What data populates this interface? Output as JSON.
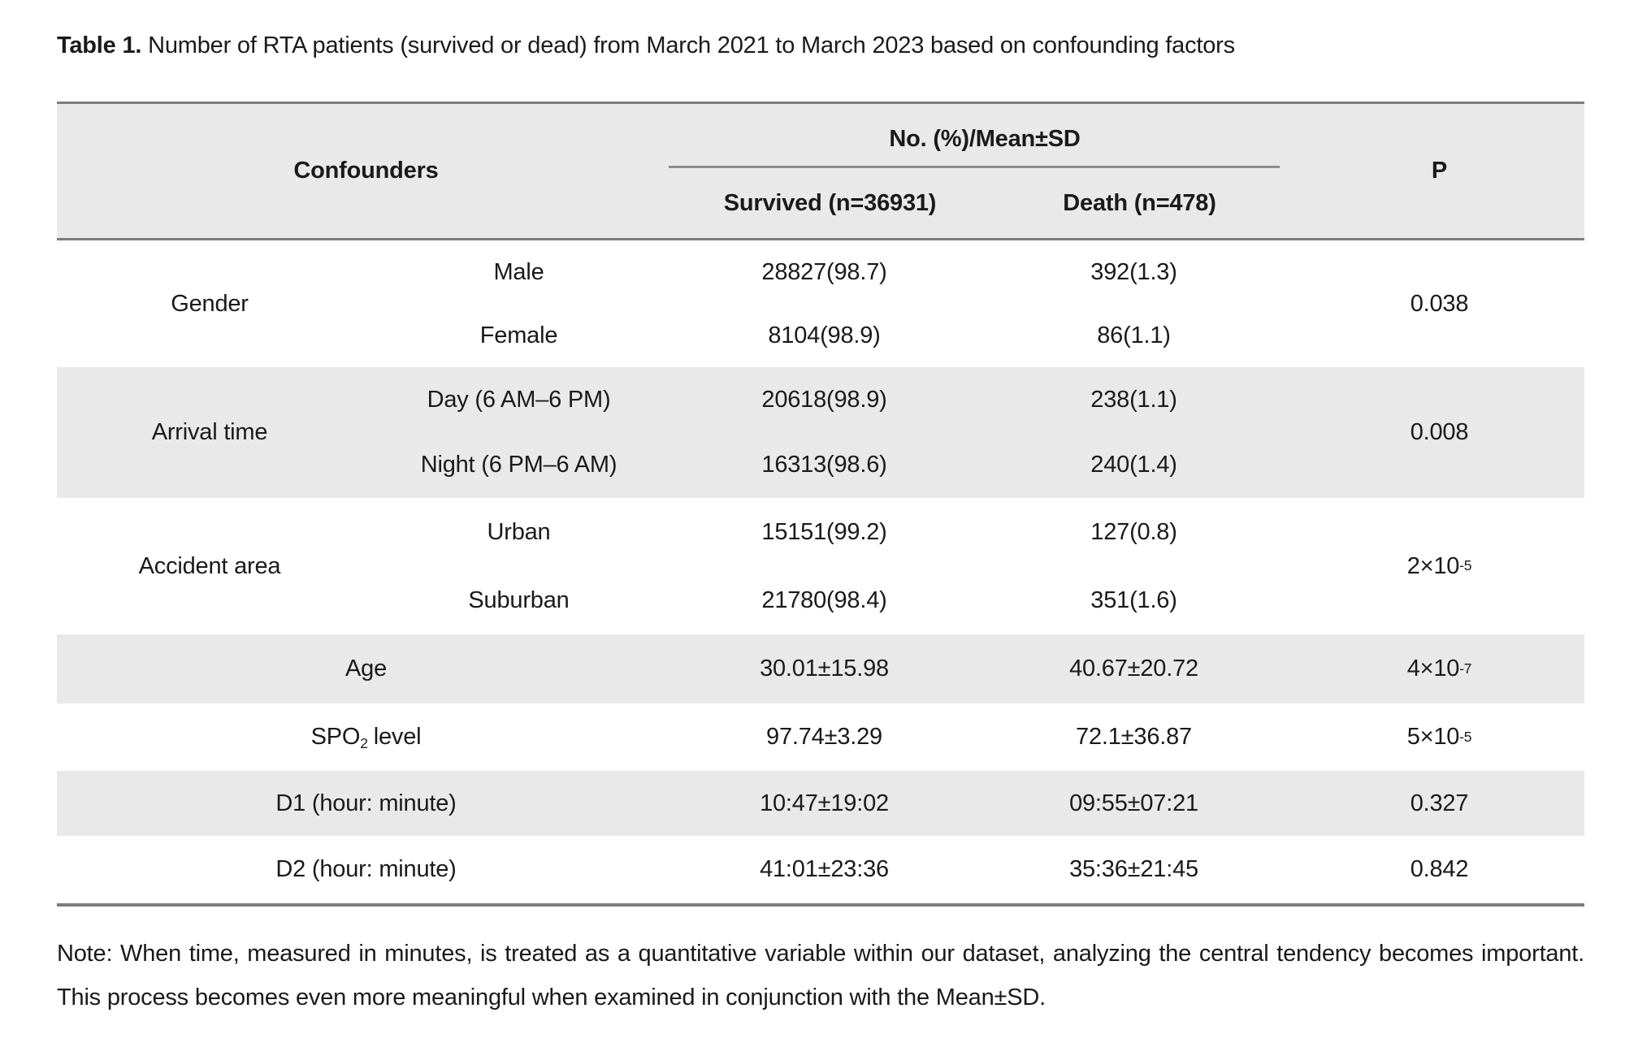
{
  "title": {
    "label": "Table 1.",
    "text": " Number of RTA patients (survived or dead) from March 2021 to March 2023 based on confounding factors"
  },
  "table": {
    "header": {
      "confounders": "Confounders",
      "group_header": "No. (%)/Mean±SD",
      "survived": "Survived (n=36931)",
      "death": "Death (n=478)",
      "p": "P"
    },
    "groups": [
      {
        "label": "Gender",
        "rows": [
          {
            "category": "Male",
            "survived": "28827(98.7)",
            "death": "392(1.3)"
          },
          {
            "category": "Female",
            "survived": "8104(98.9)",
            "death": "86(1.1)"
          }
        ],
        "p": "0.038"
      },
      {
        "label": "Arrival time",
        "rows": [
          {
            "category": "Day (6 AM–6 PM)",
            "survived": "20618(98.9)",
            "death": "238(1.1)"
          },
          {
            "category": "Night (6 PM–6 AM)",
            "survived": "16313(98.6)",
            "death": "240(1.4)"
          }
        ],
        "p": "0.008"
      },
      {
        "label": "Accident area",
        "rows": [
          {
            "category": "Urban",
            "survived": "15151(99.2)",
            "death": "127(0.8)"
          },
          {
            "category": "Suburban",
            "survived": "21780(98.4)",
            "death": "351(1.6)"
          }
        ],
        "p_base": "2×10",
        "p_exp": "-5"
      }
    ],
    "rows": [
      {
        "label": "Age",
        "survived": "30.01±15.98",
        "death": "40.67±20.72",
        "p_base": "4×10",
        "p_exp": "-7"
      },
      {
        "label_pre": "SPO",
        "label_sub": "2",
        "label_post": "level",
        "survived": "97.74±3.29",
        "death": "72.1±36.87",
        "p_base": "5×10",
        "p_exp": "-5"
      },
      {
        "label": "D1 (hour: minute)",
        "survived": "10:47±19:02",
        "death": "09:55±07:21",
        "p": "0.327"
      },
      {
        "label": "D2 (hour: minute)",
        "survived": "41:01±23:36",
        "death": "35:36±21:45",
        "p": "0.842"
      }
    ]
  },
  "note": "Note: When time, measured in minutes, is treated as a quantitative variable within our dataset, analyzing the central tendency becomes important. This process becomes even more meaningful when examined in conjunction with the Mean±SD."
}
